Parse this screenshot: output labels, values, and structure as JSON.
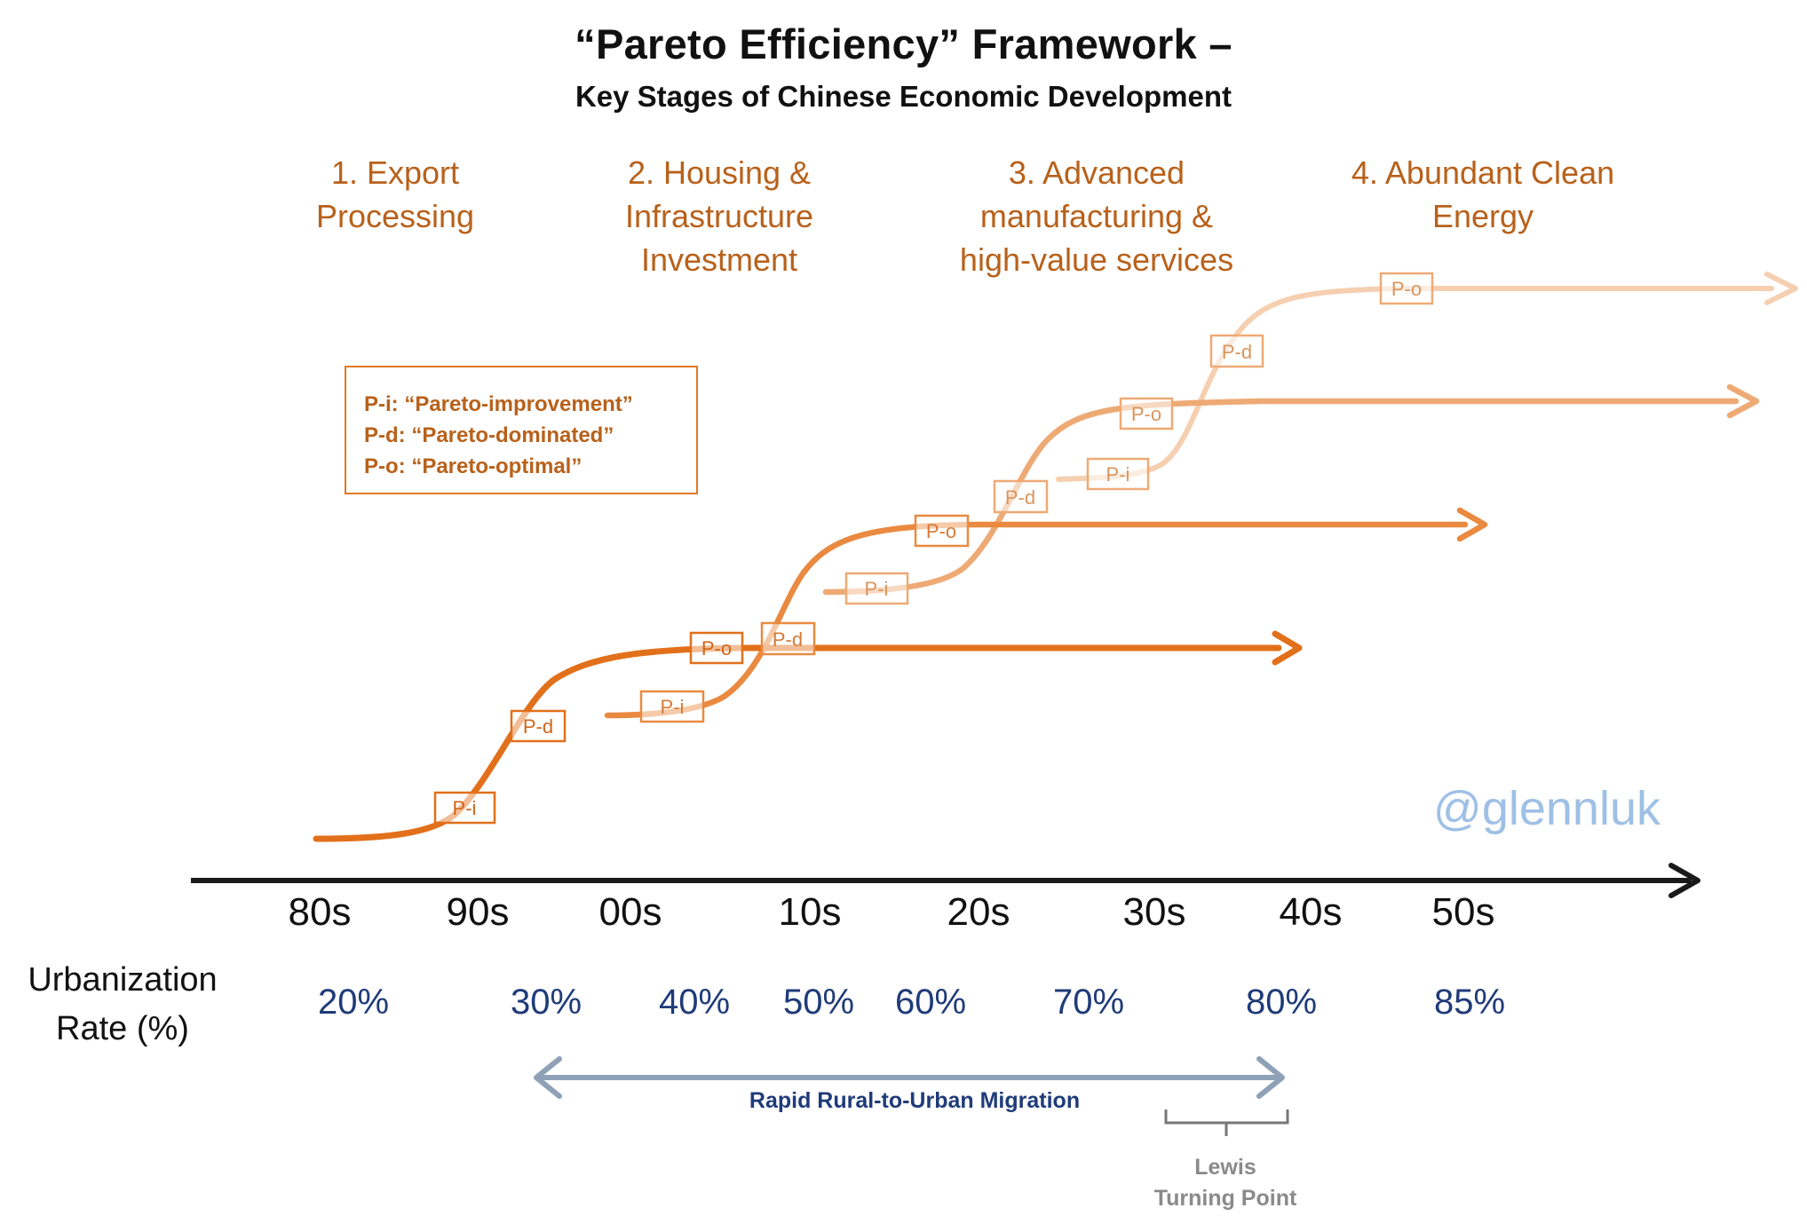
{
  "title": "“Pareto Efficiency” Framework –",
  "subtitle": "Key Stages of Chinese Economic Development",
  "stages": [
    {
      "line1": "1. Export",
      "line2": "Processing",
      "line3": ""
    },
    {
      "line1": "2. Housing &",
      "line2": "Infrastructure",
      "line3": "Investment"
    },
    {
      "line1": "3. Advanced",
      "line2": "manufacturing &",
      "line3": "high-value services"
    },
    {
      "line1": "4. Abundant Clean",
      "line2": "Energy",
      "line3": ""
    }
  ],
  "legend": {
    "pi": "P-i: “Pareto-improvement”",
    "pd": "P-d: “Pareto-dominated”",
    "po": "P-o: “Pareto-optimal”"
  },
  "badges": {
    "pi": "P-i",
    "pd": "P-d",
    "po": "P-o"
  },
  "decades": [
    "80s",
    "90s",
    "00s",
    "10s",
    "20s",
    "30s",
    "40s",
    "50s"
  ],
  "urbanization": {
    "label_line1": "Urbanization",
    "label_line2": "Rate (%)",
    "rates": [
      "20%",
      "30%",
      "40%",
      "50%",
      "60%",
      "70%",
      "80%",
      "85%"
    ]
  },
  "watermark": "@glennluk",
  "migration_label": "Rapid Rural-to-Urban Migration",
  "lewis": {
    "line1": "Lewis",
    "line2": "Turning Point"
  },
  "colors": {
    "curve1": "#e2701a",
    "curve2": "#e98a40",
    "curve3": "#eeaa75",
    "curve4": "#f5cfb0",
    "axis": "#1a1a1a",
    "migration_arrow": "#8ea1b6",
    "bracket": "#777777"
  }
}
